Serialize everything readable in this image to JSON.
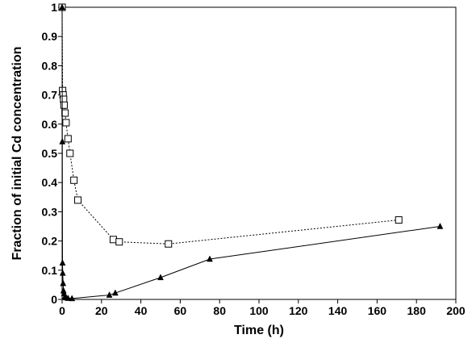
{
  "chart_data": {
    "type": "scatter",
    "title": "",
    "xlabel": "Time (h)",
    "ylabel": "Fraction of initial Cd concentration",
    "xlim": [
      0,
      200
    ],
    "ylim": [
      0,
      1
    ],
    "xticks": [
      0,
      20,
      40,
      60,
      80,
      100,
      120,
      140,
      160,
      180,
      200
    ],
    "yticks": [
      0,
      0.1,
      0.2,
      0.3,
      0.4,
      0.5,
      0.6,
      0.7,
      0.8,
      0.9,
      1
    ],
    "x_tick_labels": [
      "0",
      "20",
      "40",
      "60",
      "80",
      "100",
      "120",
      "140",
      "160",
      "180",
      "200"
    ],
    "y_tick_labels": [
      "0",
      "0.1",
      "0.2",
      "0.3",
      "0.4",
      "0.5",
      "0.6",
      "0.7",
      "0.8",
      "0.9",
      "1"
    ],
    "grid": false,
    "legend": "none",
    "series": [
      {
        "marker": "open-square",
        "line_style": "dotted",
        "color": "#000000",
        "x": [
          0,
          0.25,
          0.5,
          0.75,
          1,
          1.5,
          2,
          3,
          4,
          6,
          8,
          26,
          29,
          54,
          171
        ],
        "y": [
          1.0,
          0.715,
          0.7,
          0.685,
          0.665,
          0.638,
          0.605,
          0.55,
          0.5,
          0.408,
          0.34,
          0.205,
          0.197,
          0.19,
          0.272
        ]
      },
      {
        "marker": "filled-triangle",
        "line_style": "solid",
        "color": "#000000",
        "x": [
          0,
          0.1,
          0.2,
          0.3,
          0.5,
          0.7,
          1,
          1.5,
          2,
          3,
          5,
          24,
          27,
          50,
          75,
          192
        ],
        "y": [
          1.0,
          0.54,
          0.125,
          0.09,
          0.055,
          0.03,
          0.02,
          0.01,
          0.006,
          0.004,
          0.003,
          0.015,
          0.022,
          0.075,
          0.138,
          0.25
        ]
      }
    ]
  }
}
